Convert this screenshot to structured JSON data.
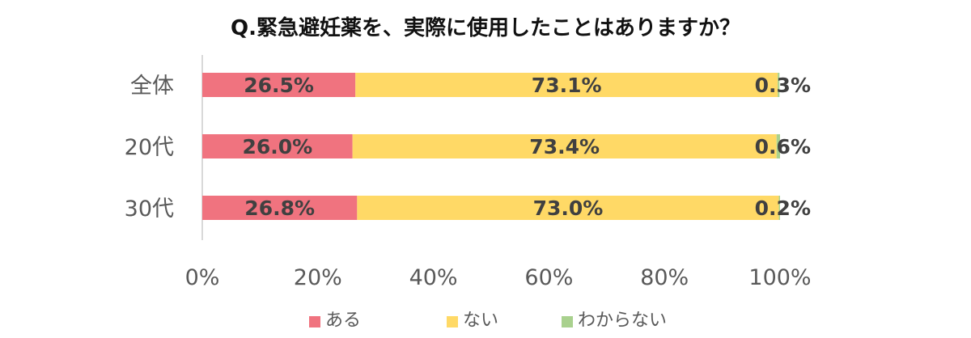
{
  "colors": {
    "yes": "#f0737f",
    "no": "#ffd966",
    "unknown": "#a9d18e",
    "axis": "#d9d9d9",
    "text": "#595959",
    "label": "#404040"
  },
  "chart_data": {
    "type": "bar",
    "orientation": "horizontal",
    "stacked": true,
    "title": "Q.緊急避妊薬を、実際に使用したことはありますか？",
    "categories": [
      "全体",
      "20代",
      "30代"
    ],
    "series": [
      {
        "name": "ある",
        "values": [
          26.5,
          26.0,
          26.8
        ],
        "labels": [
          "26.5%",
          "26.0%",
          "26.8%"
        ]
      },
      {
        "name": "ない",
        "values": [
          73.1,
          73.4,
          73.0
        ],
        "labels": [
          "73.1%",
          "73.4%",
          "73.0%"
        ]
      },
      {
        "name": "わからない",
        "values": [
          0.3,
          0.6,
          0.2
        ],
        "labels": [
          "0.3%",
          "0.6%",
          "0.2%"
        ]
      }
    ],
    "xlim": [
      0,
      100
    ],
    "x_ticks": [
      "0%",
      "20%",
      "40%",
      "60%",
      "80%",
      "100%"
    ],
    "legend_position": "bottom",
    "grid": false
  }
}
